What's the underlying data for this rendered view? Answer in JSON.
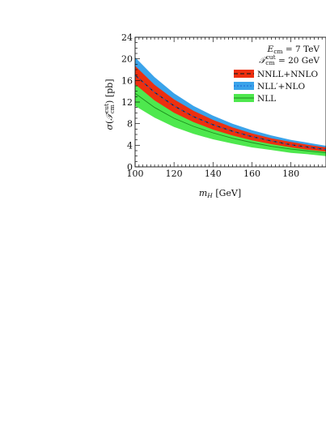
{
  "chart_data": {
    "type": "area",
    "xlabel": "m_H [GeV]",
    "ylabel": "σ(T_cm^cut) [pb]",
    "xlim": [
      100,
      198
    ],
    "ylim": [
      0,
      24
    ],
    "x_ticks": [
      "100",
      "120",
      "140",
      "160",
      "180"
    ],
    "y_ticks": [
      "0",
      "4",
      "8",
      "12",
      "16",
      "20",
      "24"
    ],
    "annotations": [
      "E_cm = 7 TeV",
      "T_cm^cut = 20 GeV"
    ],
    "legend_position": "top-right",
    "x": [
      100,
      110,
      120,
      130,
      140,
      150,
      160,
      170,
      180,
      190,
      198
    ],
    "series": [
      {
        "name": "NNLL+NNLO",
        "color": "#ee2f0f",
        "lower": [
          15.3,
          12.3,
          10.0,
          8.3,
          6.9,
          5.8,
          4.9,
          4.2,
          3.6,
          3.1,
          2.8
        ],
        "central": [
          17.0,
          13.8,
          11.3,
          9.3,
          7.8,
          6.6,
          5.6,
          4.8,
          4.1,
          3.6,
          3.2
        ],
        "upper": [
          18.7,
          15.2,
          12.5,
          10.4,
          8.7,
          7.3,
          6.2,
          5.3,
          4.6,
          4.0,
          3.6
        ]
      },
      {
        "name": "NLL′+NLO",
        "color": "#3aa3ea",
        "lower": [
          13.8,
          11.2,
          9.2,
          7.6,
          6.3,
          5.3,
          4.5,
          3.8,
          3.3,
          2.9,
          2.6
        ],
        "central": [
          17.0,
          13.8,
          11.3,
          9.3,
          7.8,
          6.6,
          5.6,
          4.8,
          4.1,
          3.6,
          3.2
        ],
        "upper": [
          20.3,
          16.6,
          13.6,
          11.3,
          9.5,
          8.0,
          6.8,
          5.8,
          5.0,
          4.4,
          3.9
        ]
      },
      {
        "name": "NLL",
        "color": "#4ee84e",
        "lower": [
          11.3,
          9.1,
          7.4,
          6.1,
          5.1,
          4.3,
          3.6,
          3.1,
          2.6,
          2.3,
          2.0
        ],
        "central": [
          13.6,
          11.0,
          9.0,
          7.5,
          6.3,
          5.3,
          4.5,
          3.8,
          3.3,
          2.9,
          2.6
        ],
        "upper": [
          15.8,
          12.8,
          10.5,
          8.7,
          7.3,
          6.2,
          5.2,
          4.5,
          3.9,
          3.4,
          3.0
        ]
      }
    ]
  }
}
